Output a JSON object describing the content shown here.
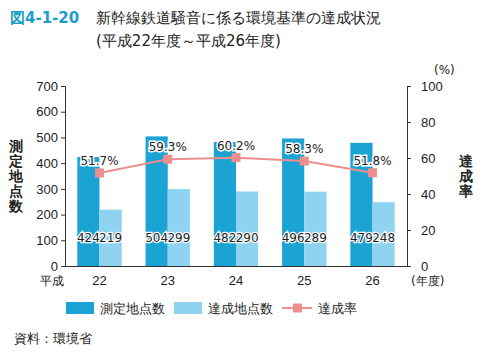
{
  "chart_data": {
    "type": "bar",
    "title": "新幹線鉄道騒音に係る環境基準の達成状況",
    "subtitle": "(平成22年度～平成26年度)",
    "annotations": [
      "図4-1-20",
      "平成",
      "(%)",
      "資料：環境省"
    ],
    "categories": [
      "22",
      "23",
      "24",
      "25",
      "26"
    ],
    "xlabel": "(年度)",
    "ylabel": "測定地点数",
    "y2label": "達成率",
    "ylim": [
      0,
      700
    ],
    "yticks": [
      0,
      100,
      200,
      300,
      400,
      500,
      600,
      700
    ],
    "y2lim": [
      0,
      100
    ],
    "y2ticks": [
      0,
      20,
      40,
      60,
      80,
      100
    ],
    "grid": false,
    "data_labels": true,
    "legend": "bottom",
    "series": [
      {
        "name": "測定地点数",
        "type": "bar",
        "color": "#1ba3d3",
        "values": [
          424,
          504,
          482,
          496,
          479
        ]
      },
      {
        "name": "達成地点数",
        "type": "bar",
        "color": "#8ed3ef",
        "values": [
          219,
          299,
          290,
          289,
          248
        ]
      },
      {
        "name": "達成率",
        "type": "line",
        "axis": "y2",
        "color": "#ef8e8e",
        "marker": "square",
        "values": [
          51.7,
          59.3,
          60.2,
          58.3,
          51.8
        ],
        "value_labels": [
          "51.7%",
          "59.3%",
          "60.2%",
          "58.3%",
          "51.8%"
        ]
      }
    ]
  }
}
